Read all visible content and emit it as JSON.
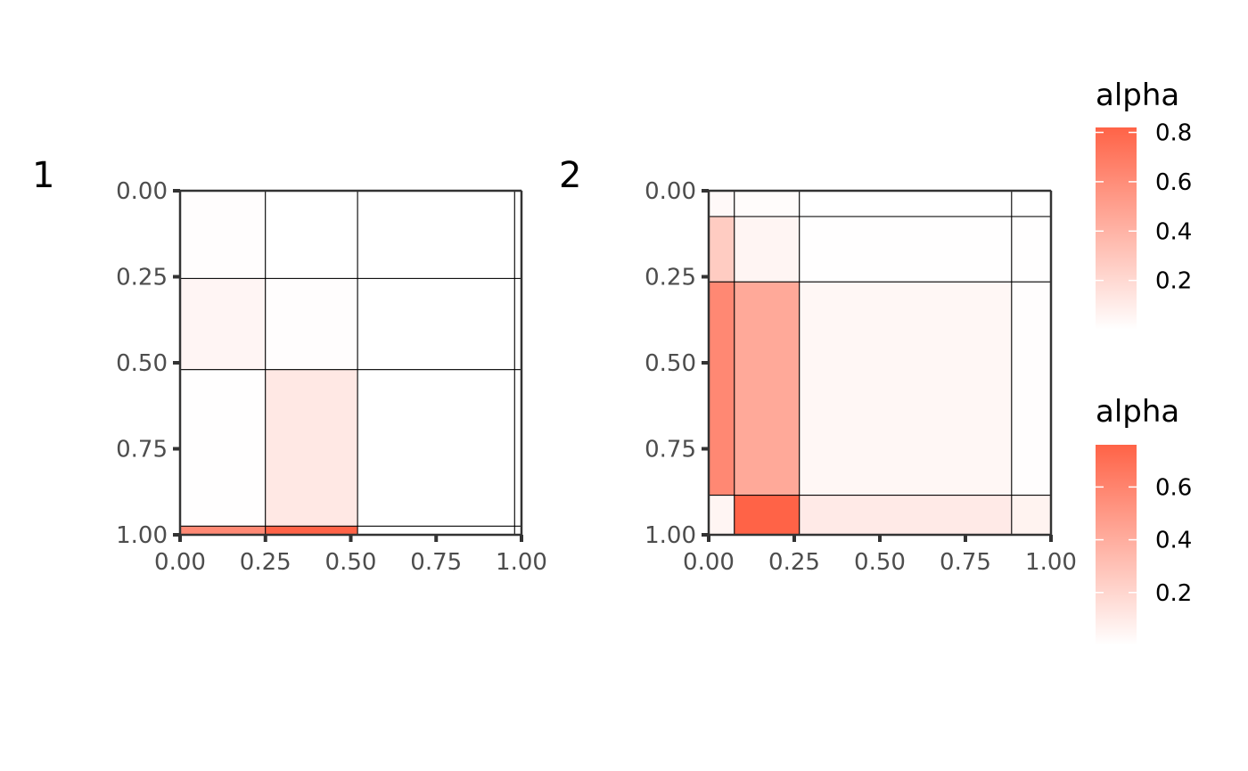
{
  "chart_data": [
    {
      "type": "heatmap",
      "panel_tag": "1",
      "xlim": [
        0,
        1
      ],
      "ylim": [
        0,
        1
      ],
      "y_reversed": true,
      "x_ticks": [
        "0.00",
        "0.25",
        "0.50",
        "0.75",
        "1.00"
      ],
      "y_ticks": [
        "0.00",
        "0.25",
        "0.50",
        "0.75",
        "1.00"
      ],
      "x_breaks": [
        0,
        0.25,
        0.52,
        0.98,
        1.0
      ],
      "y_breaks": [
        0,
        0.255,
        0.52,
        0.975,
        1.0
      ],
      "values": [
        [
          0.01,
          0.0,
          0.0,
          0.0
        ],
        [
          0.05,
          0.01,
          0.0,
          0.0
        ],
        [
          0.005,
          0.12,
          0.0,
          0.0
        ],
        [
          0.62,
          0.82,
          0.0,
          0.0
        ]
      ]
    },
    {
      "type": "heatmap",
      "panel_tag": "2",
      "xlim": [
        0,
        1
      ],
      "ylim": [
        0,
        1
      ],
      "y_reversed": true,
      "x_ticks": [
        "0.00",
        "0.25",
        "0.50",
        "0.75",
        "1.00"
      ],
      "y_ticks": [
        "0.00",
        "0.25",
        "0.50",
        "0.75",
        "1.00"
      ],
      "x_breaks": [
        0,
        0.075,
        0.265,
        0.885,
        1.0
      ],
      "y_breaks": [
        0,
        0.075,
        0.265,
        0.885,
        1.0
      ],
      "values": [
        [
          0.03,
          0.015,
          0.0,
          0.0
        ],
        [
          0.25,
          0.05,
          0.005,
          0.005
        ],
        [
          0.58,
          0.42,
          0.04,
          0.01
        ],
        [
          0.05,
          0.76,
          0.1,
          0.06
        ]
      ]
    }
  ],
  "legends": [
    {
      "title": "alpha",
      "min": 0.0,
      "max": 0.82,
      "ticks": [
        0.8,
        0.6,
        0.4,
        0.2
      ],
      "tick_labels": [
        "0.8",
        "0.6",
        "0.4",
        "0.2"
      ]
    },
    {
      "title": "alpha",
      "min": 0.0,
      "max": 0.76,
      "ticks": [
        0.6,
        0.4,
        0.2
      ],
      "tick_labels": [
        "0.6",
        "0.4",
        "0.2"
      ]
    }
  ],
  "colors": {
    "low": "#ffffff",
    "high": "#ff6347",
    "axis": "#333333",
    "cell_border": "#000000"
  }
}
